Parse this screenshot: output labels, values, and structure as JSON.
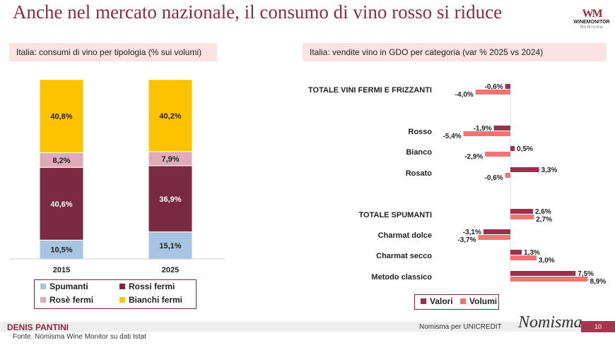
{
  "title": "Anche nel mercato nazionale, il consumo di vino rosso si riduce",
  "logo": {
    "brand": "WINEMONITOR",
    "sub": "Nomisma"
  },
  "footer": {
    "author": "DENIS PANTINI",
    "client": "Nomisma per UNICREDIT",
    "brand": "Nomisma",
    "page": "10",
    "source": "Fonte. Nomisma Wine Monitor su dati Istat"
  },
  "colors": {
    "spumanti": "#a9c3e2",
    "rossi": "#7a2a40",
    "rose": "#deabb7",
    "bianchi": "#fdc300",
    "valori": "#9c2f4c",
    "volumi": "#f07474"
  },
  "chart_data": [
    {
      "type": "bar",
      "stacked": true,
      "title": "Italia: consumi di vino per tipologia (% sui volumi)",
      "categories": [
        "2015",
        "2025"
      ],
      "series": [
        {
          "name": "Spumanti",
          "key": "spumanti",
          "values": [
            10.5,
            15.1
          ],
          "labels": [
            "10,5%",
            "15,1%"
          ]
        },
        {
          "name": "Rossi fermi",
          "key": "rossi",
          "values": [
            40.6,
            36.9
          ],
          "labels": [
            "40,6%",
            "36,9%"
          ]
        },
        {
          "name": "Rosè fermi",
          "key": "rose",
          "values": [
            8.2,
            7.9
          ],
          "labels": [
            "8,2%",
            "7,9%"
          ]
        },
        {
          "name": "Bianchi fermi",
          "key": "bianchi",
          "values": [
            40.8,
            40.2
          ],
          "labels": [
            "40,8%",
            "40,2%"
          ]
        }
      ],
      "legend": "bottom"
    },
    {
      "type": "bar",
      "orientation": "horizontal",
      "title": "Italia: vendite vino in GDO per categoria (var % 2025 vs 2024)",
      "categories": [
        "TOTALE VINI FERMI E FRIZZANTI",
        "Rosso",
        "Bianco",
        "Rosato",
        "TOTALE SPUMANTI",
        "Charmat dolce",
        "Charmat secco",
        "Metodo classico"
      ],
      "series": [
        {
          "name": "Valori",
          "key": "valori",
          "values": [
            -0.6,
            -1.9,
            0.5,
            3.3,
            2.6,
            -3.1,
            1.3,
            7.5
          ],
          "labels": [
            "-0,6%",
            "-1,9%",
            "0,5%",
            "3,3%",
            "2,6%",
            "-3,1%",
            "1,3%",
            "7,5%"
          ]
        },
        {
          "name": "Volumi",
          "key": "volumi",
          "values": [
            -4.0,
            -5.4,
            -2.9,
            -0.6,
            2.7,
            -3.7,
            3.0,
            8.9
          ],
          "labels": [
            "-4,0%",
            "-5,4%",
            "-2,9%",
            "-0,6%",
            "2,7%",
            "-3,7%",
            "3,0%",
            "8,9%"
          ]
        }
      ],
      "legend": "bottom"
    }
  ]
}
